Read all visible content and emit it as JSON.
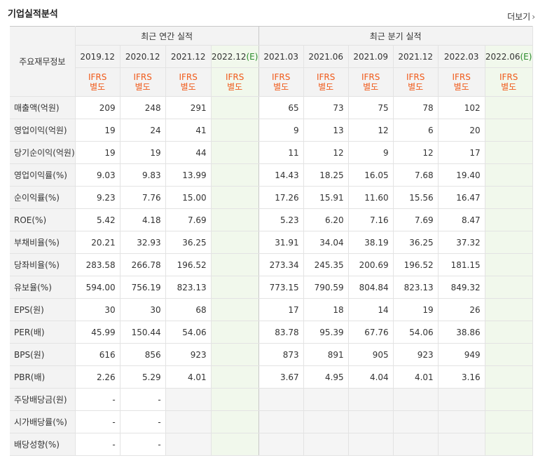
{
  "title": "기업실적분석",
  "more_label": "더보기",
  "table": {
    "corner_label": "주요재무정보",
    "annual_group": "최근 연간 실적",
    "quarterly_group": "최근 분기 실적",
    "periods": [
      {
        "label": "2019.12",
        "estimate": "",
        "type": "annual"
      },
      {
        "label": "2020.12",
        "estimate": "",
        "type": "annual"
      },
      {
        "label": "2021.12",
        "estimate": "",
        "type": "annual"
      },
      {
        "label": "2022.12",
        "estimate": "(E)",
        "type": "annual"
      },
      {
        "label": "2021.03",
        "estimate": "",
        "type": "quarter"
      },
      {
        "label": "2021.06",
        "estimate": "",
        "type": "quarter"
      },
      {
        "label": "2021.09",
        "estimate": "",
        "type": "quarter"
      },
      {
        "label": "2021.12",
        "estimate": "",
        "type": "quarter"
      },
      {
        "label": "2022.03",
        "estimate": "",
        "type": "quarter"
      },
      {
        "label": "2022.06",
        "estimate": "(E)",
        "type": "quarter"
      }
    ],
    "ifrs_line1": "IFRS",
    "ifrs_line2": "별도",
    "rows": [
      {
        "label": "매출액(억원)",
        "values": [
          "209",
          "248",
          "291",
          "",
          "65",
          "73",
          "75",
          "78",
          "102",
          ""
        ],
        "section_start": true
      },
      {
        "label": "영업이익(억원)",
        "values": [
          "19",
          "24",
          "41",
          "",
          "9",
          "13",
          "12",
          "6",
          "20",
          ""
        ]
      },
      {
        "label": "당기순이익(억원)",
        "values": [
          "19",
          "19",
          "44",
          "",
          "11",
          "12",
          "9",
          "12",
          "17",
          ""
        ]
      },
      {
        "label": "영업이익률(%)",
        "values": [
          "9.03",
          "9.83",
          "13.99",
          "",
          "14.43",
          "18.25",
          "16.05",
          "7.68",
          "19.40",
          ""
        ],
        "section_start": true
      },
      {
        "label": "순이익률(%)",
        "values": [
          "9.23",
          "7.76",
          "15.00",
          "",
          "17.26",
          "15.91",
          "11.60",
          "15.56",
          "16.47",
          ""
        ]
      },
      {
        "label": "ROE(%)",
        "values": [
          "5.42",
          "4.18",
          "7.69",
          "",
          "5.23",
          "6.20",
          "7.16",
          "7.69",
          "8.47",
          ""
        ]
      },
      {
        "label": "부채비율(%)",
        "values": [
          "20.21",
          "32.93",
          "36.25",
          "",
          "31.91",
          "34.04",
          "38.19",
          "36.25",
          "37.32",
          ""
        ],
        "section_start": true
      },
      {
        "label": "당좌비율(%)",
        "values": [
          "283.58",
          "266.78",
          "196.52",
          "",
          "273.34",
          "245.35",
          "200.69",
          "196.52",
          "181.15",
          ""
        ]
      },
      {
        "label": "유보율(%)",
        "values": [
          "594.00",
          "756.19",
          "823.13",
          "",
          "773.15",
          "790.59",
          "804.84",
          "823.13",
          "849.32",
          ""
        ]
      },
      {
        "label": "EPS(원)",
        "values": [
          "30",
          "30",
          "68",
          "",
          "17",
          "18",
          "14",
          "19",
          "26",
          ""
        ],
        "section_start": true
      },
      {
        "label": "PER(배)",
        "values": [
          "45.99",
          "150.44",
          "54.06",
          "",
          "83.78",
          "95.39",
          "67.76",
          "54.06",
          "38.86",
          ""
        ]
      },
      {
        "label": "BPS(원)",
        "values": [
          "616",
          "856",
          "923",
          "",
          "873",
          "891",
          "905",
          "923",
          "949",
          ""
        ]
      },
      {
        "label": "PBR(배)",
        "values": [
          "2.26",
          "5.29",
          "4.01",
          "",
          "3.67",
          "4.95",
          "4.04",
          "4.01",
          "3.16",
          ""
        ]
      },
      {
        "label": "주당배당금(원)",
        "values": [
          "-",
          "-",
          "",
          "",
          "",
          "",
          "",
          "",
          "",
          ""
        ],
        "section_start": true,
        "dividend": true
      },
      {
        "label": "시가배당률(%)",
        "values": [
          "-",
          "-",
          "",
          "",
          "",
          "",
          "",
          "",
          "",
          ""
        ],
        "dividend": true
      },
      {
        "label": "배당성향(%)",
        "values": [
          "-",
          "-",
          "",
          "",
          "",
          "",
          "",
          "",
          "",
          ""
        ],
        "dividend": true
      }
    ]
  }
}
